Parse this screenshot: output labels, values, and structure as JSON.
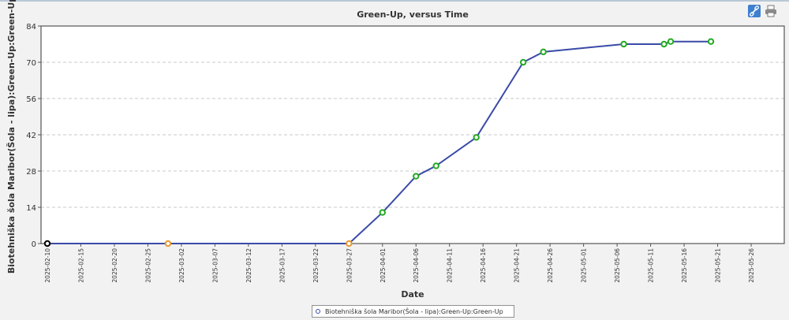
{
  "toolbar": {
    "link_icon": "link-icon",
    "print_icon": "printer-icon",
    "link_color": "#3e7fd0"
  },
  "chart_data": {
    "type": "line",
    "title": "Green-Up, versus Time",
    "xlabel": "Date",
    "ylabel": "Biotehniška šola Maribor(Šola - lipa):Green-Up:Green-Up",
    "x_type": "date",
    "xlim": [
      "2025-02-10",
      "2025-05-30"
    ],
    "ylim": [
      0,
      84
    ],
    "y_ticks": [
      0,
      14,
      28,
      42,
      56,
      70,
      84
    ],
    "x_ticks": [
      "2025-02-10",
      "2025-02-15",
      "2025-02-20",
      "2025-02-25",
      "2025-03-02",
      "2025-03-07",
      "2025-03-12",
      "2025-03-17",
      "2025-03-22",
      "2025-03-27",
      "2025-04-01",
      "2025-04-06",
      "2025-04-11",
      "2025-04-16",
      "2025-04-21",
      "2025-04-26",
      "2025-05-01",
      "2025-05-06",
      "2025-05-11",
      "2025-05-16",
      "2025-05-21",
      "2025-05-26"
    ],
    "grid": true,
    "legend_position": "bottom-center",
    "series": [
      {
        "name": "Biotehniška šola Maribor(Šola - lipa):Green-Up:Green-Up",
        "line_color": "#3a4aa8",
        "points": [
          {
            "x": "2025-02-10",
            "y": 0,
            "marker_color": "#000000"
          },
          {
            "x": "2025-02-28",
            "y": 0,
            "marker_color": "#e69a2e"
          },
          {
            "x": "2025-03-27",
            "y": 0,
            "marker_color": "#e69a2e"
          },
          {
            "x": "2025-04-01",
            "y": 12,
            "marker_color": "#22aa22"
          },
          {
            "x": "2025-04-06",
            "y": 26,
            "marker_color": "#22aa22"
          },
          {
            "x": "2025-04-09",
            "y": 30,
            "marker_color": "#22aa22"
          },
          {
            "x": "2025-04-15",
            "y": 41,
            "marker_color": "#22aa22"
          },
          {
            "x": "2025-04-22",
            "y": 70,
            "marker_color": "#22aa22"
          },
          {
            "x": "2025-04-25",
            "y": 74,
            "marker_color": "#22aa22"
          },
          {
            "x": "2025-05-07",
            "y": 77,
            "marker_color": "#22aa22"
          },
          {
            "x": "2025-05-13",
            "y": 77,
            "marker_color": "#22aa22"
          },
          {
            "x": "2025-05-14",
            "y": 78,
            "marker_color": "#22aa22"
          },
          {
            "x": "2025-05-20",
            "y": 78,
            "marker_color": "#22aa22"
          }
        ]
      }
    ]
  }
}
